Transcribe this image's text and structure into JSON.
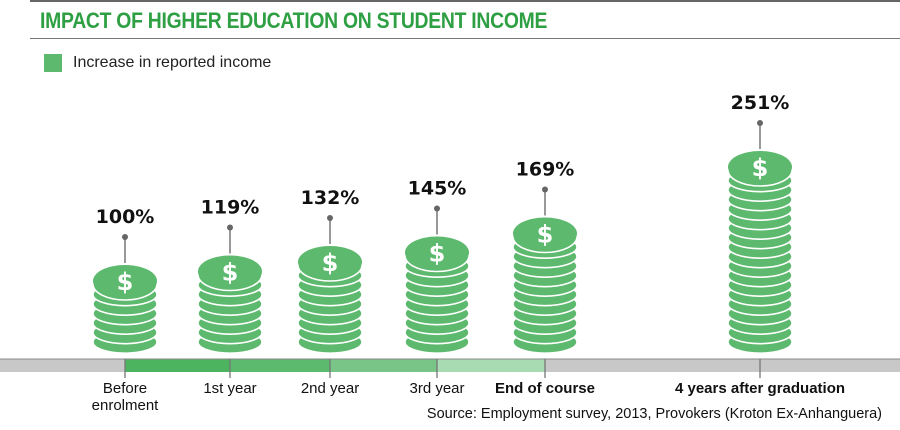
{
  "chart_data": {
    "type": "bar",
    "title": "IMPACT OF HIGHER EDUCATION ON STUDENT INCOME",
    "legend": {
      "label": "Increase in reported income",
      "placement": "top-left"
    },
    "categories": [
      "Before enrolment",
      "1st year",
      "2nd year",
      "3rd year",
      "End of course",
      "4 years after graduation"
    ],
    "values": [
      100,
      119,
      132,
      145,
      169,
      251
    ],
    "data_labels": [
      "100%",
      "119%",
      "132%",
      "145%",
      "169%",
      "251%"
    ],
    "unit": "%",
    "bold_categories": [
      "End of course",
      "4 years after graduation"
    ],
    "mark": "stacked coins with $ symbol",
    "source": "Source: Employment survey, 2013, Provokers (Kroton Ex-Anhanguera)",
    "colors": {
      "title": "#2ea043",
      "coin": "#5cb96d",
      "timeline_segments": [
        "#4cb35f",
        "#5cba6e",
        "#78c587",
        "#a8dbb2"
      ],
      "timeline_base": "#c8c8c8"
    }
  }
}
